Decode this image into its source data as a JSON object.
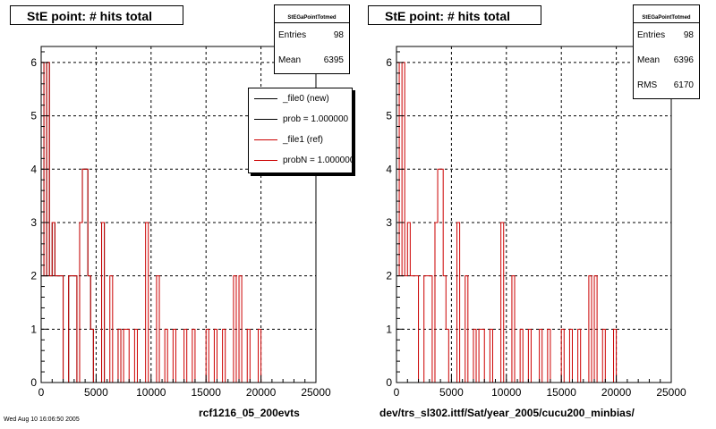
{
  "left_panel": {
    "title": "StE point: # hits total",
    "stats": {
      "name": "StEGaPointTotmed",
      "rows": [
        {
          "label": "Entries",
          "value": "98"
        },
        {
          "label": "Mean",
          "value": "6395"
        }
      ]
    },
    "legend": [
      {
        "label": "_file0 (new)",
        "color": "#000000"
      },
      {
        "label": "prob = 1.000000",
        "color": "#000000"
      },
      {
        "label": "_file1 (ref)",
        "color": "#cc0000"
      },
      {
        "label": "probN = 1.000000",
        "color": "#cc0000"
      }
    ],
    "caption": "rcf1216_05_200evts"
  },
  "right_panel": {
    "title": "StE point: # hits total",
    "stats": {
      "name": "StEGaPointTotmed",
      "rows": [
        {
          "label": "Entries",
          "value": "98"
        },
        {
          "label": "Mean",
          "value": "6396"
        },
        {
          "label": "RMS",
          "value": "6170"
        }
      ]
    },
    "caption": "dev/trs_sl302.ittf/Sat/year_2005/cucu200_minbias/"
  },
  "footer_text": "Wed Aug 10 16:06:50 2005",
  "colors": {
    "new_histogram": "#000000",
    "ref_histogram": "#cc0000",
    "grid": "#000000"
  },
  "chart_data": [
    {
      "type": "histogram",
      "title": "StE point: # hits total",
      "x_ticks": [
        0,
        5000,
        10000,
        15000,
        20000,
        25000
      ],
      "y_ticks": [
        0,
        1,
        2,
        3,
        4,
        5,
        6
      ],
      "xlim": [
        0,
        25000
      ],
      "ylim": [
        0,
        6.3
      ],
      "grid": true,
      "bin_width": 250,
      "series": [
        {
          "name": "_file0 (new)",
          "color": "#000000",
          "values": [
            6,
            2,
            6,
            2,
            3,
            2,
            2,
            2,
            0,
            0,
            2,
            2,
            2,
            0,
            3,
            4,
            4,
            2,
            1,
            0,
            0,
            0,
            3,
            0,
            0,
            0,
            0,
            0,
            1,
            0,
            0,
            0,
            0,
            0,
            0,
            0,
            0,
            0,
            0,
            0,
            0,
            0,
            0,
            0,
            0,
            0,
            0,
            0,
            0,
            0,
            0,
            0,
            0,
            0,
            0,
            0,
            0,
            0,
            0,
            0,
            0,
            0,
            0,
            0,
            0,
            0,
            0,
            0,
            0,
            0,
            0,
            0,
            0,
            0,
            0,
            0,
            0,
            0,
            0,
            0,
            0,
            0,
            0,
            0,
            0,
            0,
            0,
            0,
            0,
            0,
            0,
            0,
            0,
            0,
            0,
            0,
            0
          ]
        },
        {
          "name": "_file1 (ref)",
          "color": "#cc0000",
          "values": [
            6,
            2,
            6,
            2,
            3,
            2,
            2,
            2,
            0,
            0,
            2,
            2,
            2,
            0,
            3,
            4,
            4,
            2,
            1,
            0,
            0,
            0,
            3,
            0,
            0,
            2,
            0,
            0,
            1,
            0,
            1,
            1,
            0,
            0,
            1,
            0,
            0,
            0,
            3,
            0,
            0,
            0,
            2,
            0,
            0,
            1,
            0,
            0,
            1,
            0,
            0,
            0,
            1,
            0,
            0,
            1,
            0,
            0,
            0,
            0,
            1,
            0,
            0,
            1,
            0,
            0,
            1,
            0,
            0,
            0,
            2,
            0,
            2,
            0,
            0,
            1,
            0,
            0,
            0,
            1,
            0,
            0,
            0,
            0,
            0,
            0,
            0,
            0,
            0,
            0,
            0,
            0,
            0,
            0,
            0,
            0,
            0,
            0
          ]
        }
      ]
    },
    {
      "type": "histogram",
      "title": "StE point: # hits total",
      "x_ticks": [
        0,
        5000,
        10000,
        15000,
        20000,
        25000
      ],
      "y_ticks": [
        0,
        1,
        2,
        3,
        4,
        5,
        6
      ],
      "xlim": [
        0,
        25000
      ],
      "ylim": [
        0,
        6.3
      ],
      "grid": true,
      "bin_width": 250,
      "series": [
        {
          "name": "_file1 (ref)",
          "color": "#cc0000",
          "values": [
            6,
            2,
            6,
            2,
            3,
            2,
            2,
            2,
            0,
            0,
            2,
            2,
            2,
            0,
            3,
            4,
            4,
            2,
            1,
            0,
            0,
            0,
            3,
            0,
            0,
            2,
            0,
            0,
            1,
            0,
            1,
            1,
            0,
            0,
            1,
            0,
            0,
            0,
            3,
            0,
            0,
            0,
            2,
            0,
            0,
            1,
            0,
            0,
            1,
            0,
            0,
            0,
            1,
            0,
            0,
            1,
            0,
            0,
            0,
            0,
            1,
            0,
            0,
            1,
            0,
            0,
            1,
            0,
            0,
            0,
            2,
            0,
            2,
            0,
            0,
            1,
            0,
            0,
            0,
            1,
            0,
            0,
            0,
            0,
            0,
            0,
            0,
            0,
            0,
            0,
            0,
            0,
            0,
            0,
            0,
            0,
            0,
            0
          ]
        }
      ]
    }
  ]
}
